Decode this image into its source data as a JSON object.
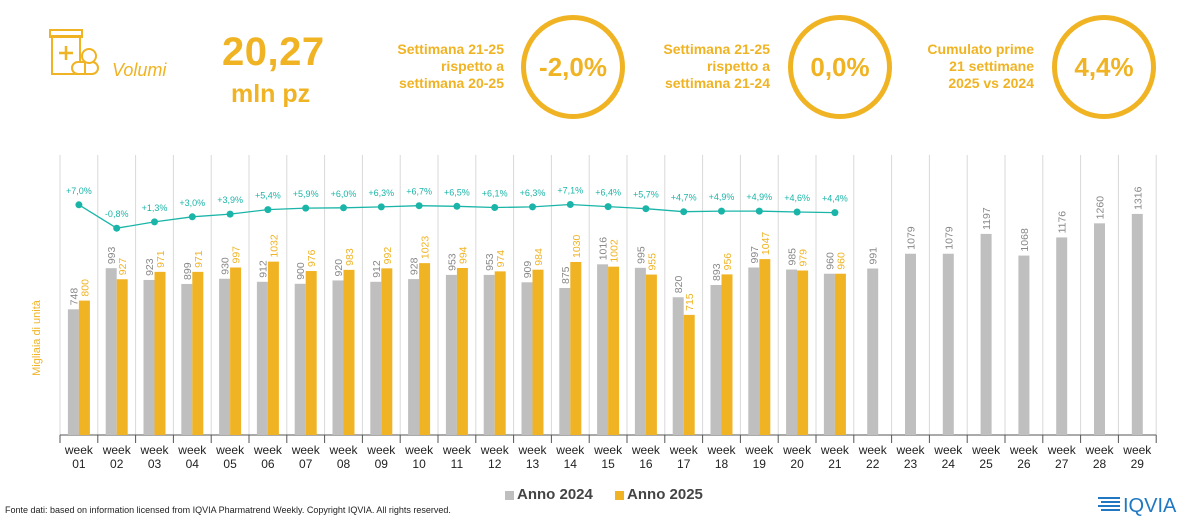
{
  "header": {
    "label": "Volumi",
    "value": "20,27",
    "unit": "mln pz",
    "stats": [
      {
        "text": "Settimana 21-25\nrispetto a\nsettimana 20-25",
        "value": "-2,0%"
      },
      {
        "text": "Settimana 21-25\nrispetto a\nsettimana 21-24",
        "value": "0,0%"
      },
      {
        "text": "Cumulato prime\n21 settimane\n2025 vs 2024",
        "value": "4,4%"
      }
    ]
  },
  "colors": {
    "accent": "#f0b323",
    "grey": "#bfbfbf",
    "line": "#1ab5a8"
  },
  "chart_data": {
    "type": "bar",
    "ylabel": "Migliaia di unità",
    "categories": [
      "week 01",
      "week 02",
      "week 03",
      "week 04",
      "week 05",
      "week 06",
      "week 07",
      "week 08",
      "week 09",
      "week 10",
      "week 11",
      "week 12",
      "week 13",
      "week 14",
      "week 15",
      "week 16",
      "week 17",
      "week 18",
      "week 19",
      "week 20",
      "week 21",
      "week 22",
      "week 23",
      "week 24",
      "week 25",
      "week 26",
      "week 27",
      "week 28",
      "week 29"
    ],
    "series": [
      {
        "name": "Anno 2024",
        "values": [
          748,
          993,
          923,
          899,
          930,
          912,
          900,
          920,
          912,
          928,
          953,
          953,
          909,
          875,
          1016,
          995,
          820,
          893,
          997,
          985,
          960,
          991,
          1079,
          1079,
          1197,
          1068,
          1176,
          1260,
          1316
        ]
      },
      {
        "name": "Anno 2025",
        "values": [
          800,
          927,
          971,
          971,
          997,
          1032,
          976,
          983,
          992,
          1023,
          994,
          974,
          984,
          1030,
          1002,
          955,
          715,
          956,
          1047,
          979,
          960,
          null,
          null,
          null,
          null,
          null,
          null,
          null,
          null
        ]
      }
    ],
    "growth": {
      "labels": [
        "+7,0%",
        "-0,8%",
        "+1,3%",
        "+3,0%",
        "+3,9%",
        "+5,4%",
        "+5,9%",
        "+6,0%",
        "+6,3%",
        "+6,7%",
        "+6,5%",
        "+6,1%",
        "+6,3%",
        "+7,1%",
        "+6,4%",
        "+5,7%",
        "+4,7%",
        "+4,9%",
        "+4,9%",
        "+4,6%",
        "+4,4%"
      ],
      "values": [
        7.0,
        -0.8,
        1.3,
        3.0,
        3.9,
        5.4,
        5.9,
        6.0,
        6.3,
        6.7,
        6.5,
        6.1,
        6.3,
        7.1,
        6.4,
        5.7,
        4.7,
        4.9,
        4.9,
        4.6,
        4.4
      ]
    },
    "legend_position": "bottom-center"
  },
  "footer": {
    "source": "Fonte dati: based on information licensed from IQVIA Pharmatrend Weekly. Copyright IQVIA. All rights reserved.",
    "brand": "IQVIA"
  }
}
